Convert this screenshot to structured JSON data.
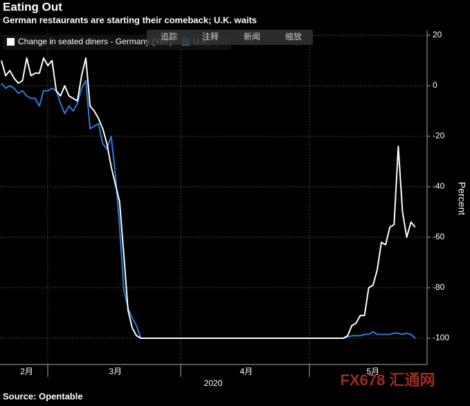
{
  "chart_data": {
    "type": "line",
    "title": "Eating Out",
    "subtitle": "German restaurants are starting their comeback; U.K. waits",
    "y_label": "Percent",
    "x_label": "2020",
    "source": "Source: Opentable",
    "toolbar": [
      "追踪",
      "注释",
      "新闻",
      "缩放"
    ],
    "watermark": "FX678 汇通网",
    "legend": "top-left",
    "grid": true,
    "ylim": [
      -110,
      22
    ],
    "yticks": [
      20,
      0,
      -20,
      -40,
      -60,
      -80,
      -100
    ],
    "categories": [
      null,
      null,
      null,
      null,
      null,
      null,
      "2月",
      null,
      null,
      null,
      null,
      null,
      null,
      null,
      null,
      null,
      null,
      null,
      null,
      null,
      null,
      null,
      null,
      null,
      null,
      null,
      null,
      "3月",
      null,
      null,
      null,
      null,
      null,
      null,
      null,
      null,
      null,
      null,
      null,
      null,
      null,
      null,
      null,
      null,
      null,
      null,
      null,
      null,
      null,
      null,
      null,
      null,
      null,
      null,
      null,
      null,
      null,
      null,
      "4月",
      null,
      null,
      null,
      null,
      null,
      null,
      null,
      null,
      null,
      null,
      null,
      null,
      null,
      null,
      null,
      null,
      null,
      null,
      null,
      null,
      null,
      null,
      null,
      null,
      null,
      null,
      null,
      null,
      null,
      "5月",
      null,
      null,
      null,
      null,
      null,
      null,
      null,
      null,
      null,
      null
    ],
    "series": [
      {
        "name": "Change in seated diners - Germany (YoY)",
        "color": "#ffffff",
        "values": [
          10,
          4,
          6,
          3,
          1,
          2,
          11,
          4,
          5,
          5,
          11,
          8,
          10,
          -2,
          -4,
          0,
          -4,
          -5,
          -6,
          4,
          11,
          -8,
          -10,
          -13,
          -17,
          -23,
          -32,
          -39,
          -46,
          -67,
          -89,
          -96,
          -99,
          -100,
          -100,
          -100,
          -100,
          -100,
          -100,
          -100,
          -100,
          -100,
          -100,
          -100,
          -100,
          -100,
          -100,
          -100,
          -100,
          -100,
          -100,
          -100,
          -100,
          -100,
          -100,
          -100,
          -100,
          -100,
          -100,
          -100,
          -100,
          -100,
          -100,
          -100,
          -100,
          -100,
          -100,
          -100,
          -100,
          -100,
          -100,
          -100,
          -100,
          -100,
          -100,
          -100,
          -100,
          -100,
          -100,
          -100,
          -100,
          -100,
          -99,
          -95,
          -94,
          -91,
          -91,
          -80,
          -79,
          -73,
          -62,
          -63,
          -56,
          -55,
          -24,
          -50,
          -60,
          -54,
          -56
        ]
      },
      {
        "name": "U.K.",
        "color": "#2f7bd8",
        "values": [
          1,
          -1,
          0,
          -1,
          -3,
          -2,
          -4,
          -5,
          -5,
          -8,
          -2,
          -2,
          -1,
          -2,
          -7,
          -11,
          -8,
          -10,
          -7,
          -1,
          2,
          -17,
          -16,
          -15,
          -23,
          -25,
          -20,
          -35,
          -56,
          -81,
          -88,
          -92,
          -95,
          -100,
          -100,
          -100,
          -100,
          -100,
          -100,
          -100,
          -100,
          -100,
          -100,
          -100,
          -100,
          -100,
          -100,
          -100,
          -100,
          -100,
          -100,
          -100,
          -100,
          -100,
          -100,
          -100,
          -100,
          -100,
          -100,
          -100,
          -100,
          -100,
          -100,
          -100,
          -100,
          -100,
          -100,
          -100,
          -100,
          -100,
          -100,
          -100,
          -100,
          -100,
          -100,
          -100,
          -100,
          -100,
          -100,
          -100,
          -100,
          -100,
          -99.5,
          -99,
          -99,
          -99,
          -98.5,
          -98.5,
          -97.5,
          -98.5,
          -98.5,
          -98.5,
          -98.5,
          -98,
          -98,
          -98.5,
          -98,
          -98.5,
          -100
        ]
      }
    ]
  }
}
